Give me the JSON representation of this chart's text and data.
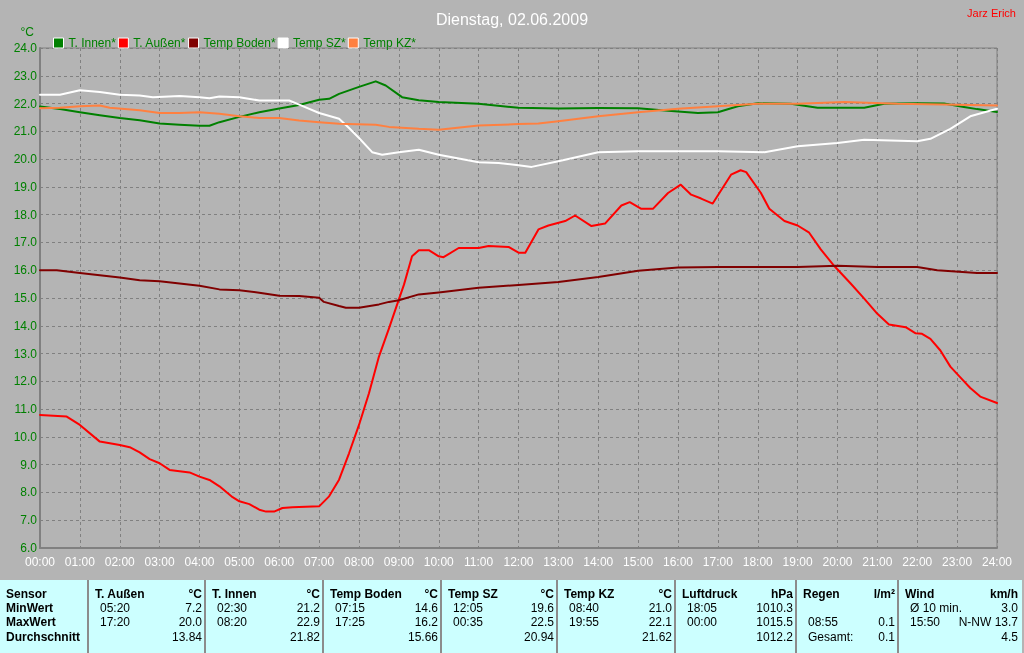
{
  "chart_data": {
    "type": "line",
    "title": "Dienstag, 02.06.2009",
    "ylabel": "°C",
    "annotations": [
      "Jarz Erich",
      "Sensor",
      "MinWert",
      "MaxWert",
      "Durchschnitt",
      "T. Außen",
      "°C",
      "05:20",
      "7.2",
      "17:20",
      "20.0",
      "13.84",
      "T. Innen",
      "°C",
      "02:30",
      "21.2",
      "08:20",
      "22.9",
      "21.82",
      "Temp Boden",
      "°C",
      "07:15",
      "14.6",
      "17:25",
      "16.2",
      "15.66",
      "Temp SZ",
      "°C",
      "12:05",
      "19.6",
      "00:35",
      "22.5",
      "20.94",
      "Temp KZ",
      "°C",
      "08:40",
      "21.0",
      "19:55",
      "22.1",
      "21.62",
      "Luftdruck",
      "hPa",
      "18:05",
      "1010.3",
      "00:00",
      "1015.5",
      "1012.2",
      "Regen",
      "l/m²",
      "08:55",
      "0.1",
      "Gesamt:",
      "0.1",
      "Wind",
      "km/h",
      "Ø 10 min.",
      "3.0",
      "15:50",
      "N-NW 13.7",
      "4.5"
    ],
    "xlim": [
      0,
      24
    ],
    "ylim": [
      6,
      24
    ],
    "xticks": [
      {
        "value": 0,
        "label": "00:00"
      },
      {
        "value": 1,
        "label": "01:00"
      },
      {
        "value": 2,
        "label": "02:00"
      },
      {
        "value": 3,
        "label": "03:00"
      },
      {
        "value": 4,
        "label": "04:00"
      },
      {
        "value": 5,
        "label": "05:00"
      },
      {
        "value": 6,
        "label": "06:00"
      },
      {
        "value": 7,
        "label": "07:00"
      },
      {
        "value": 8,
        "label": "08:00"
      },
      {
        "value": 9,
        "label": "09:00"
      },
      {
        "value": 10,
        "label": "10:00"
      },
      {
        "value": 11,
        "label": "11:00"
      },
      {
        "value": 12,
        "label": "12:00"
      },
      {
        "value": 13,
        "label": "13:00"
      },
      {
        "value": 14,
        "label": "14:00"
      },
      {
        "value": 15,
        "label": "15:00"
      },
      {
        "value": 16,
        "label": "16:00"
      },
      {
        "value": 17,
        "label": "17:00"
      },
      {
        "value": 18,
        "label": "18:00"
      },
      {
        "value": 19,
        "label": "19:00"
      },
      {
        "value": 20,
        "label": "20:00"
      },
      {
        "value": 21,
        "label": "21:00"
      },
      {
        "value": 22,
        "label": "22:00"
      },
      {
        "value": 23,
        "label": "23:00"
      },
      {
        "value": 24,
        "label": "24:00"
      }
    ],
    "yticks": [
      {
        "value": 6,
        "label": "6.0"
      },
      {
        "value": 7,
        "label": "7.0"
      },
      {
        "value": 8,
        "label": "8.0"
      },
      {
        "value": 9,
        "label": "9.0"
      },
      {
        "value": 10,
        "label": "10.0"
      },
      {
        "value": 11,
        "label": "11.0"
      },
      {
        "value": 12,
        "label": "12.0"
      },
      {
        "value": 13,
        "label": "13.0"
      },
      {
        "value": 14,
        "label": "14.0"
      },
      {
        "value": 15,
        "label": "15.0"
      },
      {
        "value": 16,
        "label": "16.0"
      },
      {
        "value": 17,
        "label": "17.0"
      },
      {
        "value": 18,
        "label": "18.0"
      },
      {
        "value": 19,
        "label": "19.0"
      },
      {
        "value": 20,
        "label": "20.0"
      },
      {
        "value": 21,
        "label": "21.0"
      },
      {
        "value": 22,
        "label": "22.0"
      },
      {
        "value": 23,
        "label": "23.0"
      },
      {
        "value": 24,
        "label": "24.0"
      }
    ],
    "grid": true,
    "legend": "top left",
    "marker": "none",
    "line_style": "solid",
    "series": [
      {
        "name": "T. Innen*",
        "color": "#008000",
        "x": [
          0,
          0.5,
          1,
          1.5,
          2,
          2.5,
          3,
          3.5,
          4,
          4.25,
          4.5,
          5,
          5.5,
          6,
          6.5,
          7,
          7.25,
          7.5,
          8,
          8.42,
          8.67,
          9.08,
          9.5,
          10,
          11,
          12,
          13,
          14,
          15,
          15.67,
          16.5,
          17,
          17.5,
          18,
          18.83,
          19.5,
          20.67,
          21.17,
          22,
          22.67,
          23.17,
          23.5,
          24
        ],
        "values": [
          21.89,
          21.8,
          21.69,
          21.58,
          21.48,
          21.4,
          21.28,
          21.24,
          21.2,
          21.2,
          21.33,
          21.52,
          21.69,
          21.82,
          21.95,
          22.14,
          22.17,
          22.35,
          22.6,
          22.8,
          22.65,
          22.23,
          22.12,
          22.06,
          21.99,
          21.85,
          21.82,
          21.84,
          21.83,
          21.75,
          21.66,
          21.69,
          21.9,
          22.01,
          21.99,
          21.85,
          21.85,
          21.99,
          22.01,
          22.0,
          21.88,
          21.8,
          21.7
        ]
      },
      {
        "name": "T. Außen*",
        "color": "#ff0000",
        "x": [
          0,
          0.67,
          1,
          1.5,
          2,
          2.25,
          2.5,
          2.75,
          3,
          3.25,
          3.75,
          4,
          4.25,
          4.5,
          4.83,
          5,
          5.25,
          5.5,
          5.67,
          5.87,
          6.08,
          6.33,
          7,
          7.25,
          7.5,
          7.75,
          8,
          8.25,
          8.5,
          8.75,
          9,
          9.13,
          9.33,
          9.5,
          9.75,
          10,
          10.12,
          10.5,
          11,
          11.25,
          11.75,
          12,
          12.17,
          12.5,
          12.75,
          13.17,
          13.42,
          13.83,
          14.17,
          14.58,
          14.79,
          15.08,
          15.37,
          15.75,
          16.07,
          16.33,
          16.58,
          16.87,
          17.33,
          17.57,
          17.71,
          18.08,
          18.29,
          18.67,
          19,
          19.29,
          19.58,
          19.92,
          20.33,
          20.67,
          21,
          21.29,
          21.71,
          21.96,
          22.12,
          22.33,
          22.58,
          22.83,
          23.08,
          23.33,
          23.58,
          24
        ],
        "values": [
          10.79,
          10.73,
          10.43,
          9.83,
          9.71,
          9.63,
          9.44,
          9.2,
          9.05,
          8.81,
          8.72,
          8.57,
          8.45,
          8.22,
          7.83,
          7.68,
          7.58,
          7.38,
          7.31,
          7.31,
          7.44,
          7.47,
          7.5,
          7.86,
          8.46,
          9.41,
          10.43,
          11.57,
          12.89,
          13.9,
          14.95,
          15.49,
          16.5,
          16.72,
          16.72,
          16.5,
          16.47,
          16.8,
          16.8,
          16.87,
          16.84,
          16.63,
          16.63,
          17.47,
          17.61,
          17.77,
          17.97,
          17.59,
          17.68,
          18.33,
          18.45,
          18.21,
          18.21,
          18.78,
          19.08,
          18.72,
          18.58,
          18.4,
          19.44,
          19.6,
          19.53,
          18.78,
          18.21,
          17.77,
          17.61,
          17.35,
          16.75,
          16.15,
          15.52,
          14.98,
          14.43,
          14.05,
          13.95,
          13.73,
          13.71,
          13.53,
          13.11,
          12.53,
          12.14,
          11.76,
          11.45,
          11.22
        ]
      },
      {
        "name": "Temp Boden*",
        "color": "#800000",
        "x": [
          0,
          0.42,
          1,
          2,
          2.5,
          3,
          3.5,
          4,
          4.5,
          5,
          5.5,
          6,
          6.5,
          7,
          7.12,
          7.5,
          7.67,
          8,
          8.5,
          8.75,
          9,
          9.5,
          10,
          11,
          12,
          13,
          14,
          15,
          16,
          17,
          19,
          20,
          21,
          22,
          22.5,
          23.5,
          24
        ],
        "values": [
          16.0,
          16.0,
          15.9,
          15.74,
          15.64,
          15.6,
          15.52,
          15.44,
          15.31,
          15.28,
          15.19,
          15.08,
          15.07,
          15.01,
          14.86,
          14.71,
          14.65,
          14.65,
          14.77,
          14.86,
          14.92,
          15.13,
          15.2,
          15.37,
          15.47,
          15.58,
          15.76,
          15.98,
          16.1,
          16.12,
          16.12,
          16.16,
          16.12,
          16.12,
          16.0,
          15.9,
          15.9
        ]
      },
      {
        "name": "Temp SZ*",
        "color": "#ffffff",
        "x": [
          0,
          0.5,
          1,
          1.5,
          2,
          2.5,
          2.83,
          3.5,
          4,
          4.25,
          4.5,
          5,
          5.5,
          6,
          6.25,
          6.5,
          7,
          7.5,
          7.75,
          8,
          8.33,
          8.58,
          9,
          9.5,
          10,
          11,
          11.5,
          12,
          12.33,
          13,
          14,
          15,
          16,
          17,
          18.17,
          19,
          20,
          20.67,
          22,
          22.33,
          22.83,
          23.33,
          24
        ],
        "values": [
          22.32,
          22.32,
          22.48,
          22.42,
          22.32,
          22.29,
          22.23,
          22.27,
          22.23,
          22.19,
          22.25,
          22.23,
          22.11,
          22.11,
          22.11,
          21.96,
          21.66,
          21.45,
          21.12,
          20.76,
          20.25,
          20.16,
          20.25,
          20.34,
          20.16,
          19.89,
          19.86,
          19.78,
          19.72,
          19.92,
          20.25,
          20.28,
          20.28,
          20.28,
          20.25,
          20.46,
          20.58,
          20.7,
          20.64,
          20.73,
          21.09,
          21.54,
          21.81
        ]
      },
      {
        "name": "Temp KZ*",
        "color": "#ff8040",
        "x": [
          0,
          0.5,
          1,
          1.5,
          1.75,
          2.5,
          3,
          3.5,
          4,
          4.5,
          5,
          5.5,
          6,
          6.5,
          7,
          7.5,
          8.42,
          8.75,
          9.5,
          10,
          11,
          12,
          12.5,
          13,
          14,
          15,
          16,
          17,
          18,
          19,
          20.17,
          21.5,
          23,
          24
        ],
        "values": [
          21.83,
          21.85,
          21.9,
          21.93,
          21.85,
          21.76,
          21.66,
          21.66,
          21.69,
          21.63,
          21.54,
          21.48,
          21.48,
          21.39,
          21.33,
          21.27,
          21.24,
          21.16,
          21.09,
          21.06,
          21.21,
          21.26,
          21.28,
          21.36,
          21.54,
          21.69,
          21.81,
          21.9,
          21.99,
          21.99,
          22.06,
          21.99,
          21.96,
          21.93
        ]
      }
    ]
  }
}
